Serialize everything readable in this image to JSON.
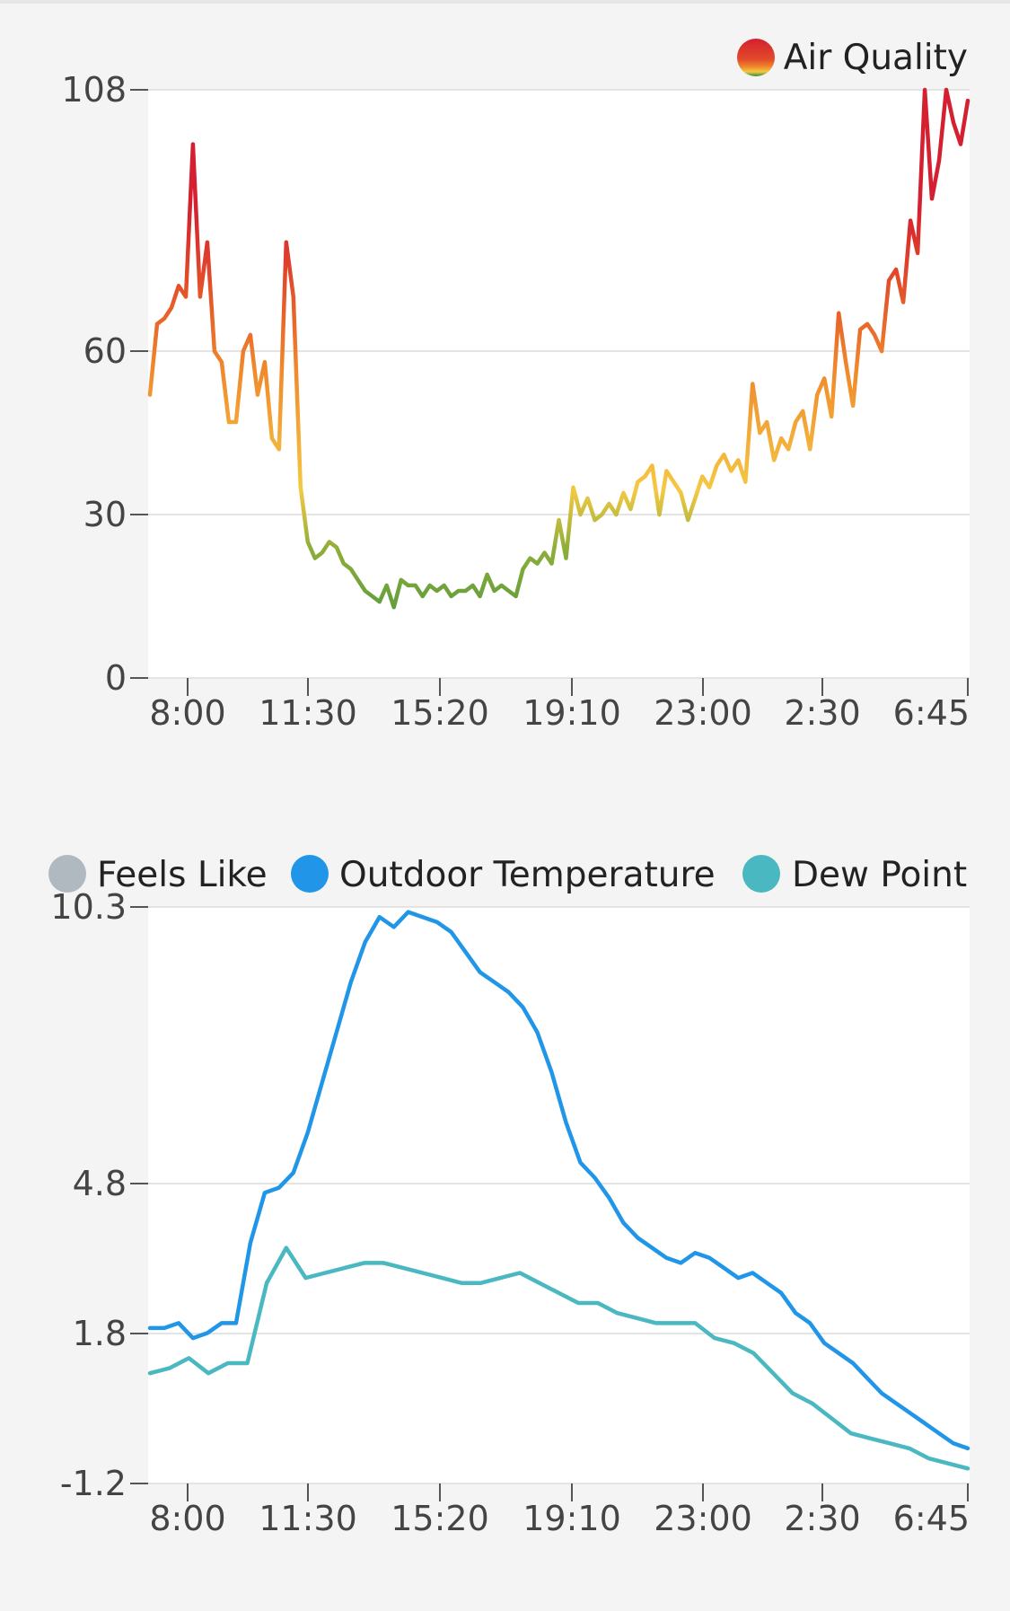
{
  "chart_data": [
    {
      "type": "line",
      "title": "",
      "xlabel": "",
      "ylabel": "",
      "x_ticks": [
        "8:00",
        "11:30",
        "15:20",
        "19:10",
        "23:00",
        "2:30",
        "6:45"
      ],
      "y_ticks": [
        "0",
        "30",
        "60",
        "108"
      ],
      "ylim": [
        0,
        108
      ],
      "legend_placement": "top-right",
      "grid": true,
      "series": [
        {
          "name": "Air Quality",
          "color_scale": [
            "#2e8b3e",
            "#f5c842",
            "#f08a2c",
            "#d42030"
          ],
          "values": [
            52,
            65,
            66,
            68,
            72,
            70,
            98,
            70,
            80,
            60,
            58,
            47,
            47,
            60,
            63,
            52,
            58,
            44,
            42,
            80,
            70,
            35,
            25,
            22,
            23,
            25,
            24,
            21,
            20,
            18,
            16,
            15,
            14,
            17,
            13,
            18,
            17,
            17,
            15,
            17,
            16,
            17,
            15,
            16,
            16,
            17,
            15,
            19,
            16,
            17,
            16,
            15,
            20,
            22,
            21,
            23,
            21,
            29,
            22,
            35,
            30,
            33,
            29,
            30,
            32,
            30,
            34,
            31,
            36,
            37,
            39,
            30,
            38,
            36,
            34,
            29,
            33,
            37,
            35,
            39,
            41,
            38,
            40,
            36,
            54,
            45,
            47,
            40,
            44,
            42,
            47,
            49,
            42,
            52,
            55,
            48,
            67,
            58,
            50,
            64,
            65,
            63,
            60,
            73,
            75,
            69,
            84,
            78,
            108,
            88,
            95,
            108,
            102,
            98,
            106
          ]
        }
      ]
    },
    {
      "type": "line",
      "title": "",
      "xlabel": "",
      "ylabel": "",
      "x_ticks": [
        "8:00",
        "11:30",
        "15:20",
        "19:10",
        "23:00",
        "2:30",
        "6:45"
      ],
      "y_ticks": [
        "-1.2",
        "1.8",
        "4.8",
        "10.3"
      ],
      "ylim": [
        -1.2,
        10.3
      ],
      "legend_placement": "top",
      "grid": true,
      "legend": [
        {
          "name": "Feels Like",
          "color": "#b0b8c0"
        },
        {
          "name": "Outdoor Temperature",
          "color": "#2196e8"
        },
        {
          "name": "Dew Point",
          "color": "#4ab8c0"
        }
      ],
      "series": [
        {
          "name": "Outdoor Temperature",
          "color": "#2196e8",
          "values": [
            1.9,
            1.9,
            2.0,
            1.7,
            1.8,
            2.0,
            2.0,
            3.6,
            4.6,
            4.7,
            5.0,
            5.8,
            6.8,
            7.8,
            8.8,
            9.6,
            10.1,
            9.9,
            10.2,
            10.1,
            10.0,
            9.8,
            9.4,
            9.0,
            8.8,
            8.6,
            8.3,
            7.8,
            7.0,
            6.0,
            5.2,
            4.9,
            4.5,
            4.0,
            3.7,
            3.5,
            3.3,
            3.2,
            3.4,
            3.3,
            3.1,
            2.9,
            3.0,
            2.8,
            2.6,
            2.2,
            2.0,
            1.6,
            1.4,
            1.2,
            0.9,
            0.6,
            0.4,
            0.2,
            0.0,
            -0.2,
            -0.4,
            -0.5
          ]
        },
        {
          "name": "Dew Point",
          "color": "#4ab8c0",
          "values": [
            1.0,
            1.1,
            1.3,
            1.0,
            1.2,
            1.2,
            2.8,
            3.5,
            2.9,
            3.0,
            3.1,
            3.2,
            3.2,
            3.1,
            3.0,
            2.9,
            2.8,
            2.8,
            2.9,
            3.0,
            2.8,
            2.6,
            2.4,
            2.4,
            2.2,
            2.1,
            2.0,
            2.0,
            2.0,
            1.7,
            1.6,
            1.4,
            1.0,
            0.6,
            0.4,
            0.1,
            -0.2,
            -0.3,
            -0.4,
            -0.5,
            -0.7,
            -0.8,
            -0.9
          ]
        }
      ]
    }
  ]
}
